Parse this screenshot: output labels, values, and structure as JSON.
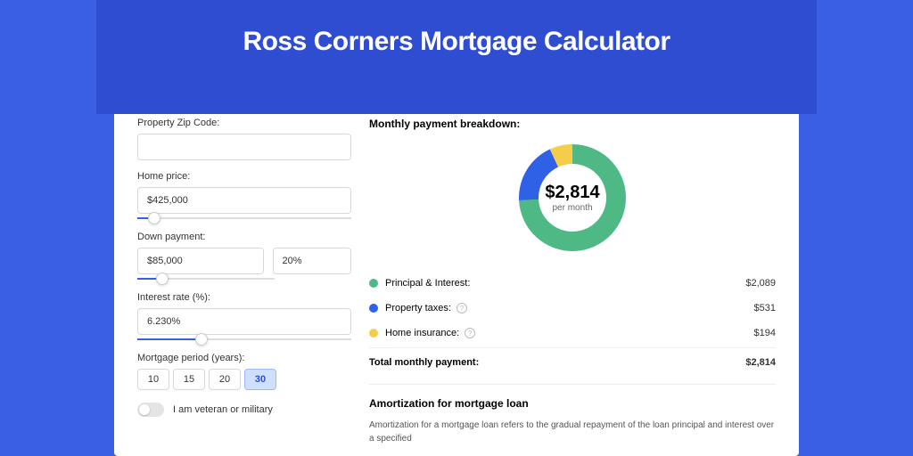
{
  "page": {
    "title": "Ross Corners Mortgage Calculator",
    "bg_color": "#3a5fe5",
    "band_color": "#2f4dd1"
  },
  "form": {
    "zip": {
      "label": "Property Zip Code:",
      "value": ""
    },
    "price": {
      "label": "Home price:",
      "value": "$425,000",
      "slider_pct": 8
    },
    "down": {
      "label": "Down payment:",
      "value": "$85,000",
      "pct": "20%",
      "slider_pct": 18
    },
    "rate": {
      "label": "Interest rate (%):",
      "value": "6.230%",
      "slider_pct": 30
    },
    "period": {
      "label": "Mortgage period (years):",
      "options": [
        "10",
        "15",
        "20",
        "30"
      ],
      "active": "30"
    },
    "veteran": {
      "label": "I am veteran or military",
      "checked": false
    }
  },
  "breakdown": {
    "title": "Monthly payment breakdown:",
    "donut": {
      "type": "donut",
      "amount": "$2,814",
      "sub": "per month",
      "size": 128,
      "thickness": 22,
      "slices": [
        {
          "label": "Principal & Interest",
          "value": 2089,
          "pct": 74.2,
          "color": "#4fb985"
        },
        {
          "label": "Property taxes",
          "value": 531,
          "pct": 18.9,
          "color": "#2f61e6"
        },
        {
          "label": "Home insurance",
          "value": 194,
          "pct": 6.9,
          "color": "#f4cd4a"
        }
      ]
    },
    "rows": [
      {
        "label": "Principal & Interest:",
        "value": "$2,089",
        "color": "#4fb985",
        "info": false
      },
      {
        "label": "Property taxes:",
        "value": "$531",
        "color": "#2f61e6",
        "info": true
      },
      {
        "label": "Home insurance:",
        "value": "$194",
        "color": "#f4cd4a",
        "info": true
      }
    ],
    "total": {
      "label": "Total monthly payment:",
      "value": "$2,814"
    }
  },
  "amortization": {
    "title": "Amortization for mortgage loan",
    "text": "Amortization for a mortgage loan refers to the gradual repayment of the loan principal and interest over a specified"
  }
}
